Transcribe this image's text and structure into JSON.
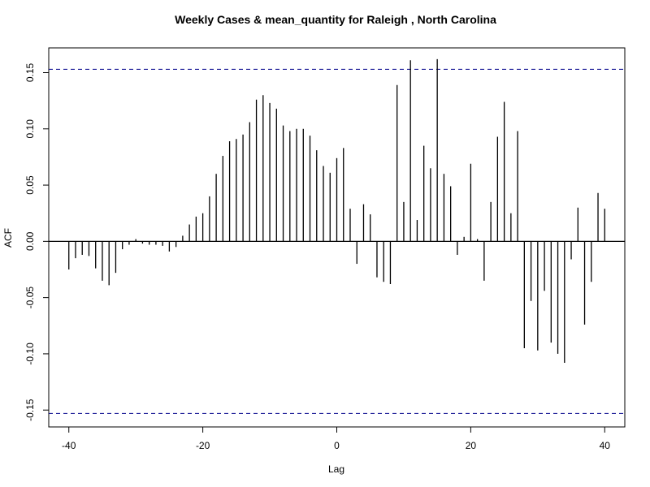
{
  "chart_data": {
    "type": "bar",
    "title": "Weekly Cases & mean_quantity for Raleigh , North Carolina",
    "xlabel": "Lag",
    "ylabel": "ACF",
    "xlim": [
      -43,
      43
    ],
    "ylim": [
      -0.165,
      0.172
    ],
    "x_ticks": [
      "-40",
      "-20",
      "0",
      "20",
      "40"
    ],
    "y_ticks": [
      "-0.15",
      "-0.10",
      "-0.05",
      "0.00",
      "0.05",
      "0.10",
      "0.15"
    ],
    "confidence_limit": 0.153,
    "colors": {
      "bars": "#000000",
      "confidence_line": "#00008b",
      "zero_line": "#000000"
    },
    "lags": [
      -40,
      -39,
      -38,
      -37,
      -36,
      -35,
      -34,
      -33,
      -32,
      -31,
      -30,
      -29,
      -28,
      -27,
      -26,
      -25,
      -24,
      -23,
      -22,
      -21,
      -20,
      -19,
      -18,
      -17,
      -16,
      -15,
      -14,
      -13,
      -12,
      -11,
      -10,
      -9,
      -8,
      -7,
      -6,
      -5,
      -4,
      -3,
      -2,
      -1,
      0,
      1,
      2,
      3,
      4,
      5,
      6,
      7,
      8,
      9,
      10,
      11,
      12,
      13,
      14,
      15,
      16,
      17,
      18,
      19,
      20,
      21,
      22,
      23,
      24,
      25,
      26,
      27,
      28,
      29,
      30,
      31,
      32,
      33,
      34,
      35,
      36,
      37,
      38,
      39,
      40
    ],
    "values": [
      -0.025,
      -0.015,
      -0.012,
      -0.013,
      -0.024,
      -0.035,
      -0.039,
      -0.028,
      -0.007,
      -0.003,
      0.002,
      -0.002,
      -0.003,
      -0.003,
      -0.004,
      -0.009,
      -0.005,
      0.005,
      0.015,
      0.022,
      0.025,
      0.04,
      0.06,
      0.076,
      0.089,
      0.091,
      0.095,
      0.106,
      0.126,
      0.13,
      0.123,
      0.118,
      0.103,
      0.098,
      0.1,
      0.1,
      0.094,
      0.081,
      0.067,
      0.061,
      0.074,
      0.083,
      0.029,
      -0.02,
      0.033,
      0.024,
      -0.032,
      -0.036,
      -0.038,
      0.139,
      0.035,
      0.161,
      0.019,
      0.085,
      0.065,
      0.162,
      0.06,
      0.049,
      -0.012,
      0.004,
      0.069,
      0.002,
      -0.035,
      0.035,
      0.093,
      0.124,
      0.025,
      0.098,
      -0.095,
      -0.053,
      -0.097,
      -0.044,
      -0.09,
      -0.1,
      -0.108,
      -0.016,
      0.03,
      -0.074,
      -0.036,
      0.043,
      0.029
    ]
  }
}
